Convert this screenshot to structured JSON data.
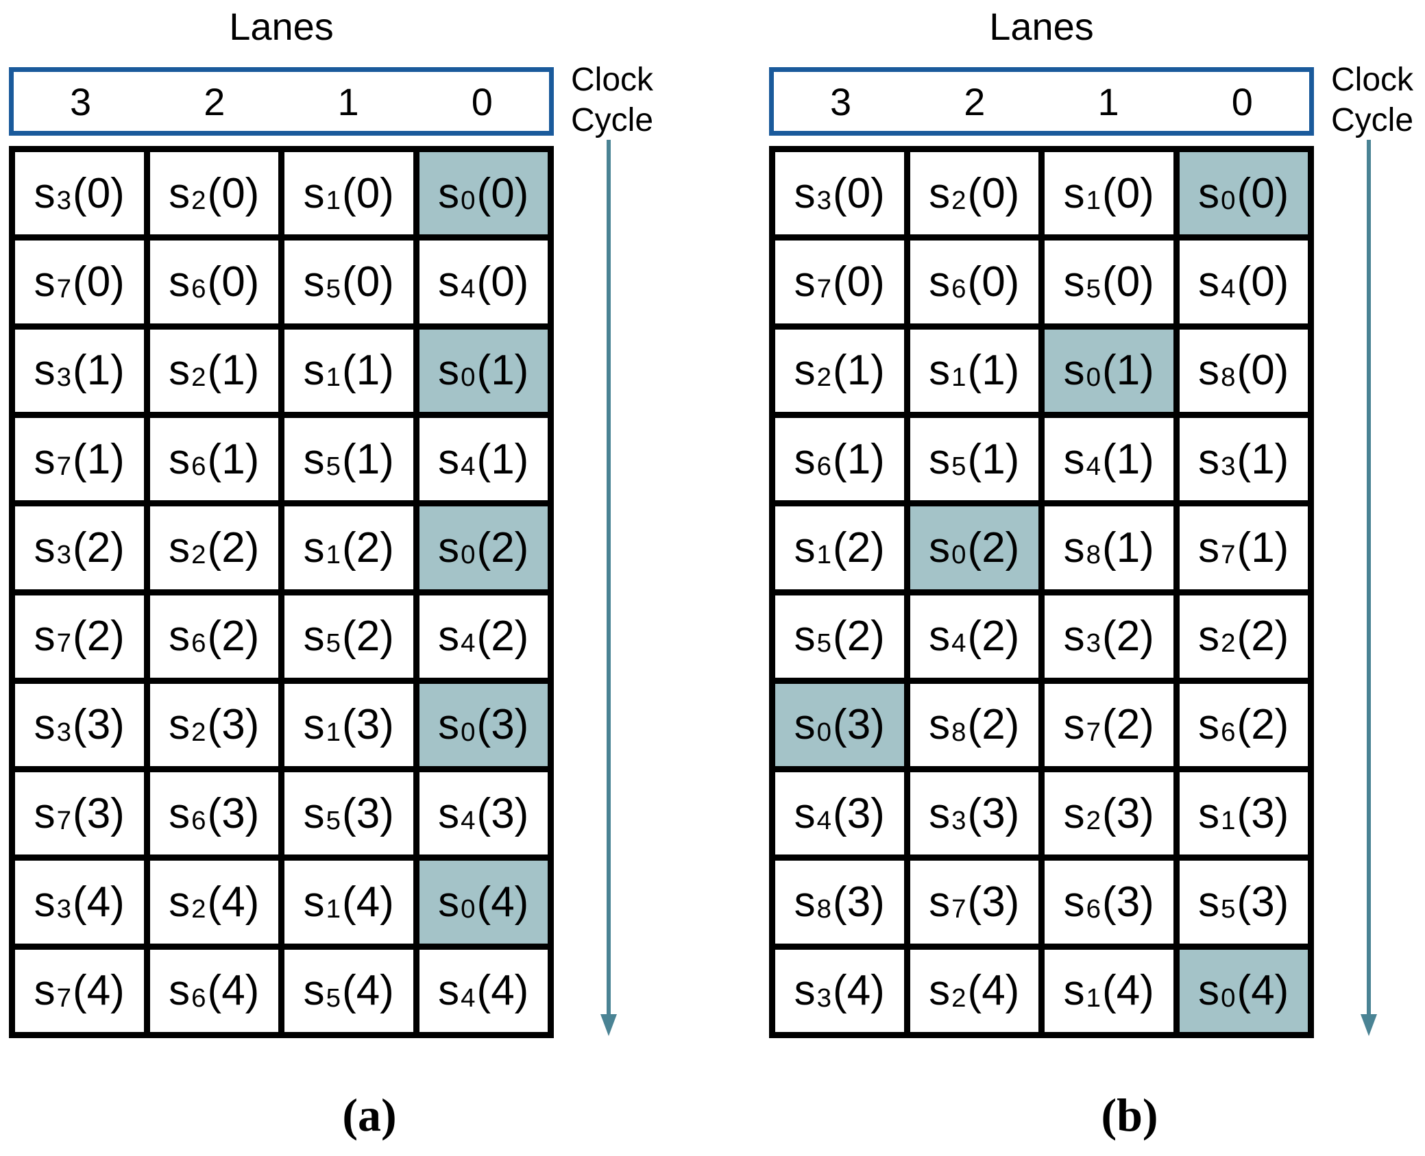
{
  "figure": {
    "colors": {
      "highlight": "#a4c3c8",
      "header_border": "#1a5a9b",
      "arrow": "#4a8394",
      "grid_line": "#000000"
    },
    "panels": [
      {
        "caption": "(a)",
        "lanes_title": "Lanes",
        "clock_label_1": "Clock",
        "clock_label_2": "Cycle",
        "lane_numbers": [
          "3",
          "2",
          "1",
          "0"
        ],
        "rows": [
          [
            {
              "t": "s_3(0)"
            },
            {
              "t": "s_2(0)"
            },
            {
              "t": "s_1(0)"
            },
            {
              "t": "s_0(0)",
              "hl": true
            }
          ],
          [
            {
              "t": "s_7(0)"
            },
            {
              "t": "s_6(0)"
            },
            {
              "t": "s_5(0)"
            },
            {
              "t": "s_4(0)"
            }
          ],
          [
            {
              "t": "s_3(1)"
            },
            {
              "t": "s_2(1)"
            },
            {
              "t": "s_1(1)"
            },
            {
              "t": "s_0(1)",
              "hl": true
            }
          ],
          [
            {
              "t": "s_7(1)"
            },
            {
              "t": "s_6(1)"
            },
            {
              "t": "s_5(1)"
            },
            {
              "t": "s_4(1)"
            }
          ],
          [
            {
              "t": "s_3(2)"
            },
            {
              "t": "s_2(2)"
            },
            {
              "t": "s_1(2)"
            },
            {
              "t": "s_0(2)",
              "hl": true
            }
          ],
          [
            {
              "t": "s_7(2)"
            },
            {
              "t": "s_6(2)"
            },
            {
              "t": "s_5(2)"
            },
            {
              "t": "s_4(2)"
            }
          ],
          [
            {
              "t": "s_3(3)"
            },
            {
              "t": "s_2(3)"
            },
            {
              "t": "s_1(3)"
            },
            {
              "t": "s_0(3)",
              "hl": true
            }
          ],
          [
            {
              "t": "s_7(3)"
            },
            {
              "t": "s_6(3)"
            },
            {
              "t": "s_5(3)"
            },
            {
              "t": "s_4(3)"
            }
          ],
          [
            {
              "t": "s_3(4)"
            },
            {
              "t": "s_2(4)"
            },
            {
              "t": "s_1(4)"
            },
            {
              "t": "s_0(4)",
              "hl": true
            }
          ],
          [
            {
              "t": "s_7(4)"
            },
            {
              "t": "s_6(4)"
            },
            {
              "t": "s_5(4)"
            },
            {
              "t": "s_4(4)"
            }
          ]
        ]
      },
      {
        "caption": "(b)",
        "lanes_title": "Lanes",
        "clock_label_1": "Clock",
        "clock_label_2": "Cycle",
        "lane_numbers": [
          "3",
          "2",
          "1",
          "0"
        ],
        "rows": [
          [
            {
              "t": "s_3(0)"
            },
            {
              "t": "s_2(0)"
            },
            {
              "t": "s_1(0)"
            },
            {
              "t": "s_0(0)",
              "hl": true
            }
          ],
          [
            {
              "t": "s_7(0)"
            },
            {
              "t": "s_6(0)"
            },
            {
              "t": "s_5(0)"
            },
            {
              "t": "s_4(0)"
            }
          ],
          [
            {
              "t": "s_2(1)"
            },
            {
              "t": "s_1(1)"
            },
            {
              "t": "s_0(1)",
              "hl": true
            },
            {
              "t": "s_8(0)"
            }
          ],
          [
            {
              "t": "s_6(1)"
            },
            {
              "t": "s_5(1)"
            },
            {
              "t": "s_4(1)"
            },
            {
              "t": "s_3(1)"
            }
          ],
          [
            {
              "t": "s_1(2)"
            },
            {
              "t": "s_0(2)",
              "hl": true
            },
            {
              "t": "s_8(1)"
            },
            {
              "t": "s_7(1)"
            }
          ],
          [
            {
              "t": "s_5(2)"
            },
            {
              "t": "s_4(2)"
            },
            {
              "t": "s_3(2)"
            },
            {
              "t": "s_2(2)"
            }
          ],
          [
            {
              "t": "s_0(3)",
              "hl": true
            },
            {
              "t": "s_8(2)"
            },
            {
              "t": "s_7(2)"
            },
            {
              "t": "s_6(2)"
            }
          ],
          [
            {
              "t": "s_4(3)"
            },
            {
              "t": "s_3(3)"
            },
            {
              "t": "s_2(3)"
            },
            {
              "t": "s_1(3)"
            }
          ],
          [
            {
              "t": "s_8(3)"
            },
            {
              "t": "s_7(3)"
            },
            {
              "t": "s_6(3)"
            },
            {
              "t": "s_5(3)"
            }
          ],
          [
            {
              "t": "s_3(4)"
            },
            {
              "t": "s_2(4)"
            },
            {
              "t": "s_1(4)"
            },
            {
              "t": "s_0(4)",
              "hl": true
            }
          ]
        ]
      }
    ]
  }
}
